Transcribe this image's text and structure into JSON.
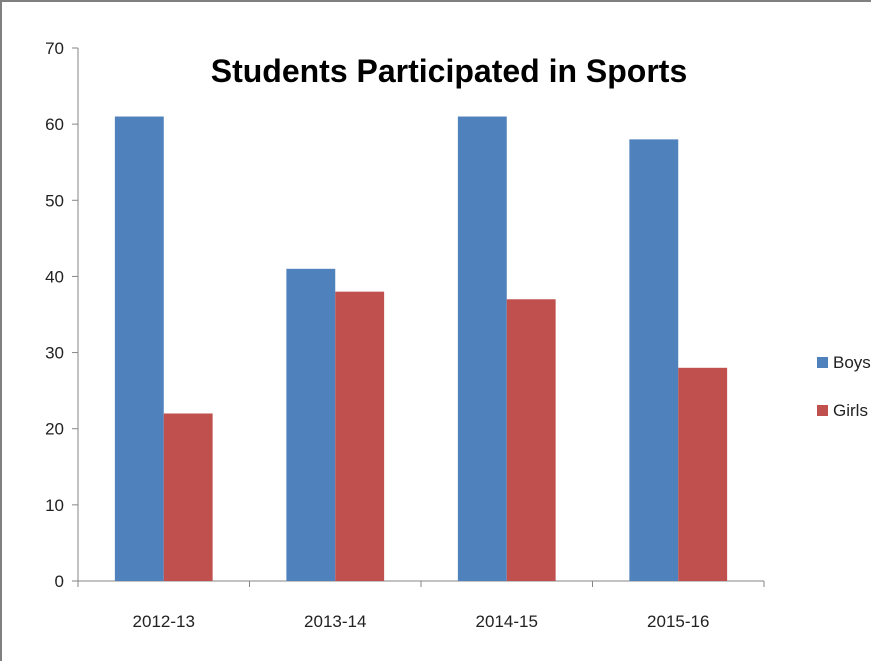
{
  "chart_data": {
    "type": "bar",
    "title": "Students Participated in Sports",
    "categories": [
      "2012-13",
      "2013-14",
      "2014-15",
      "2015-16"
    ],
    "series": [
      {
        "name": "Boys",
        "values": [
          61,
          41,
          61,
          58
        ],
        "color": "#4F81BD"
      },
      {
        "name": "Girls",
        "values": [
          22,
          38,
          37,
          28
        ],
        "color": "#C0504D"
      }
    ],
    "xlabel": "",
    "ylabel": "",
    "ylim": [
      0,
      70
    ],
    "yticks": [
      0,
      10,
      20,
      30,
      40,
      50,
      60,
      70
    ],
    "grid": false,
    "legend_position": "right"
  }
}
